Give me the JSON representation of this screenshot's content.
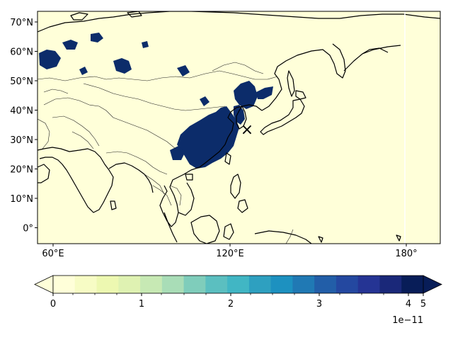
{
  "map": {
    "lat_ticks": [
      "70°N",
      "60°N",
      "50°N",
      "40°N",
      "30°N",
      "20°N",
      "10°N",
      "0°"
    ],
    "lon_ticks": [
      "60°E",
      "120°E",
      "180°"
    ],
    "marker": {
      "symbol": "×",
      "color": "#ff0000",
      "lon": 125.0,
      "lat": 33.0
    },
    "background_color": "#ffffd9",
    "data_color": "#0c2c6a"
  },
  "colorbar": {
    "colors": [
      "#ffffd9",
      "#f7fcc5",
      "#edf8b1",
      "#dff2b2",
      "#c7e9b4",
      "#a9ddb7",
      "#7fcdbb",
      "#5bbfc0",
      "#41b6c4",
      "#2ea0c0",
      "#1d91c0",
      "#2079b4",
      "#225ea8",
      "#2448a0",
      "#253494",
      "#1a2879",
      "#081d58"
    ],
    "ticks": [
      "0",
      "1",
      "2",
      "3",
      "4",
      "5"
    ],
    "tick_values": [
      0,
      1,
      2,
      3,
      4,
      5
    ],
    "multiplier": "1e−11"
  }
}
